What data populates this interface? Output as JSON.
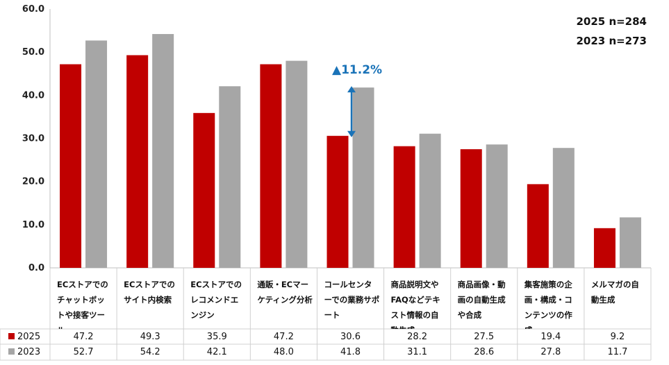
{
  "chart_data": {
    "type": "bar",
    "categories": [
      "ECストアでのチャットボットや接客ツール",
      "ECストアでのサイト内検索",
      "ECストアでのレコメンドエンジン",
      "通販・ECマーケティング分析",
      "コールセンターでの業務サポート",
      "商品説明文やFAQなどテキスト情報の自動生成",
      "商品画像・動画の自動生成や合成",
      "集客施策の企画・構成・コンテンツの作成",
      "メルマガの自動生成"
    ],
    "series": [
      {
        "name": "2025",
        "color": "#c00000",
        "values": [
          47.2,
          49.3,
          35.9,
          47.2,
          30.6,
          28.2,
          27.5,
          19.4,
          9.2
        ],
        "labels": [
          "47.2",
          "49.3",
          "35.9",
          "47.2",
          "30.6",
          "28.2",
          "27.5",
          "19.4",
          "9.2"
        ]
      },
      {
        "name": "2023",
        "color": "#a6a6a6",
        "values": [
          52.7,
          54.2,
          42.1,
          48.0,
          41.8,
          31.1,
          28.6,
          27.8,
          11.7
        ],
        "labels": [
          "52.7",
          "54.2",
          "42.1",
          "48.0",
          "41.8",
          "31.1",
          "28.6",
          "27.8",
          "11.7"
        ]
      }
    ],
    "ylim": [
      0,
      60
    ],
    "yticks": [
      "0.0",
      "10.0",
      "20.0",
      "30.0",
      "40.0",
      "50.0",
      "60.0"
    ],
    "legend_notes": [
      "2025 n=284",
      "2023 n=273"
    ],
    "annotation": {
      "text": "▲11.2%",
      "category_index": 4,
      "color": "#1a73b8"
    }
  }
}
